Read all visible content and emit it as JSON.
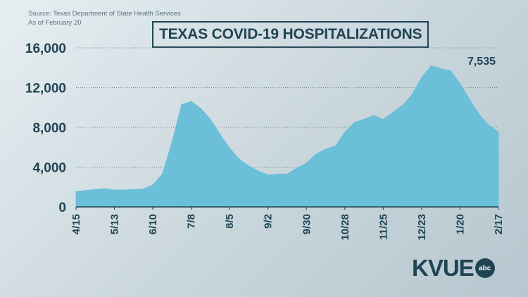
{
  "source": {
    "line1": "Source: Texas Department of State Health Services",
    "line2": "As of February 20"
  },
  "logo": {
    "text": "KVUE",
    "badge": "abc"
  },
  "colors": {
    "area": "#6bbfd8",
    "text": "#1f4453",
    "grid": "#6f8792"
  },
  "chart_data": {
    "type": "area",
    "title": "TEXAS COVID-19 HOSPITALIZATIONS",
    "xlabel": "",
    "ylabel": "",
    "ylim": [
      0,
      16000
    ],
    "yticks": [
      0,
      4000,
      8000,
      12000,
      16000
    ],
    "ytick_labels": [
      "0",
      "4,000",
      "8,000",
      "12,000",
      "16,000"
    ],
    "xticks": [
      "4/15",
      "5/13",
      "6/10",
      "7/8",
      "8/5",
      "9/2",
      "9/30",
      "10/28",
      "11/25",
      "12/23",
      "1/20",
      "2/17"
    ],
    "grid": true,
    "annotation": {
      "label": "7,535",
      "value": 7535
    },
    "x_days_from_4_15": [
      0,
      7,
      14,
      21,
      28,
      35,
      42,
      49,
      56,
      63,
      70,
      77,
      84,
      91,
      98,
      105,
      112,
      119,
      126,
      133,
      140,
      147,
      154,
      161,
      168,
      175,
      182,
      189,
      196,
      203,
      210,
      217,
      224,
      231,
      238,
      245,
      252,
      259,
      266,
      273,
      280,
      287,
      294,
      301,
      308
    ],
    "values": [
      1550,
      1650,
      1750,
      1850,
      1700,
      1700,
      1750,
      1800,
      2200,
      3300,
      6500,
      10300,
      10600,
      9900,
      8800,
      7300,
      5900,
      4800,
      4100,
      3600,
      3200,
      3300,
      3300,
      3900,
      4400,
      5300,
      5800,
      6100,
      7500,
      8500,
      8800,
      9200,
      8800,
      9500,
      10200,
      11300,
      13000,
      14200,
      13900,
      13700,
      12400,
      10800,
      9300,
      8200,
      7535
    ]
  }
}
